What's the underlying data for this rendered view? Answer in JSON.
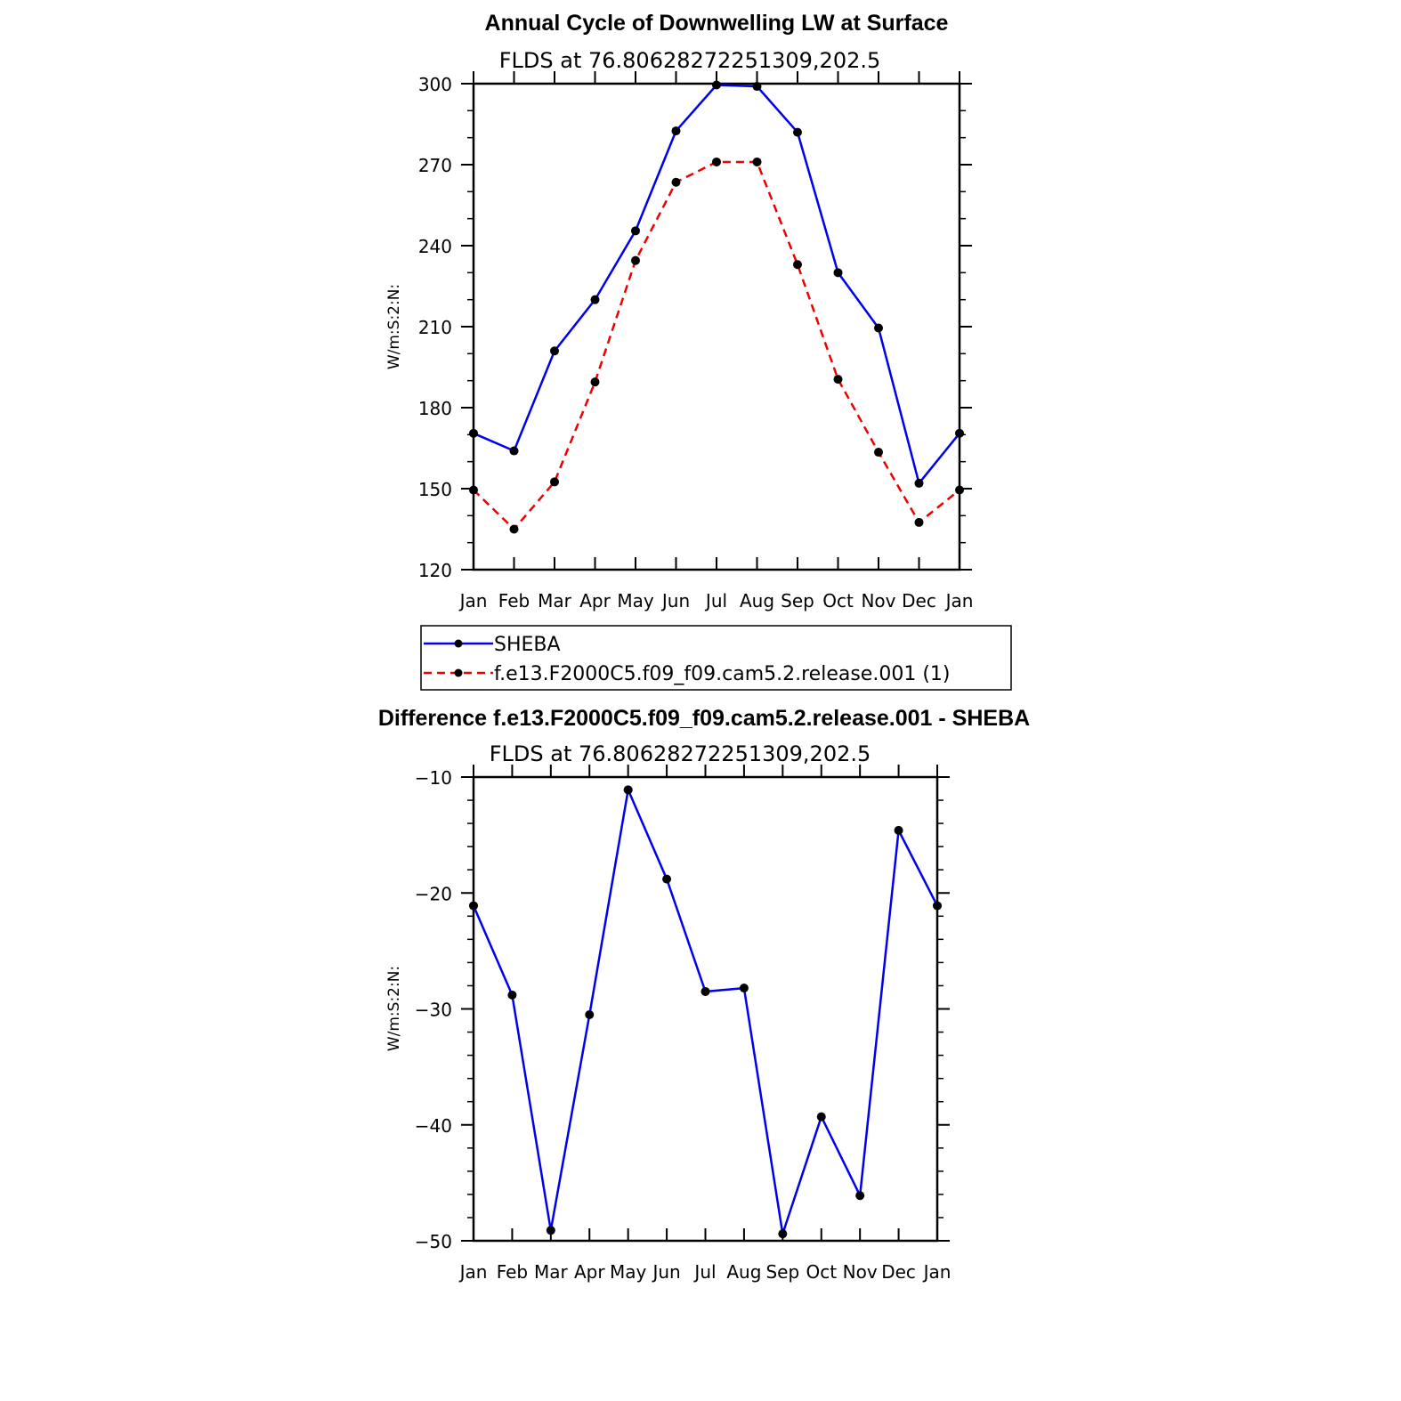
{
  "chart_data": [
    {
      "type": "line",
      "title": "Annual Cycle of Downwelling LW at Surface",
      "subtitle": "FLDS at 76.80628272251309,202.5",
      "ylabel": "W/m:S:2:N:",
      "xlabel": "",
      "categories": [
        "Jan",
        "Feb",
        "Mar",
        "Apr",
        "May",
        "Jun",
        "Jul",
        "Aug",
        "Sep",
        "Oct",
        "Nov",
        "Dec",
        "Jan"
      ],
      "ylim": [
        120,
        300
      ],
      "yticks": [
        "120",
        "150",
        "180",
        "210",
        "240",
        "270",
        "300"
      ],
      "grid": false,
      "legend_position": "bottom",
      "series": [
        {
          "name": "SHEBA",
          "color": "#0000ee",
          "dash": "solid",
          "values": [
            170.5,
            164,
            201,
            220,
            245.5,
            282.5,
            299.5,
            299,
            282,
            230,
            209.5,
            152,
            170.5
          ]
        },
        {
          "name": "f.e13.F2000C5.f09_f09.cam5.2.release.001 (1)",
          "color": "#ee0000",
          "dash": "dashed",
          "values": [
            149.5,
            135,
            152.5,
            189.5,
            234.5,
            263.5,
            271,
            271,
            233,
            190.5,
            163.5,
            137.5,
            149.5
          ]
        }
      ]
    },
    {
      "type": "line",
      "title": "Difference f.e13.F2000C5.f09_f09.cam5.2.release.001 - SHEBA",
      "subtitle": "FLDS at 76.80628272251309,202.5",
      "ylabel": "W/m:S:2:N:",
      "xlabel": "",
      "categories": [
        "Jan",
        "Feb",
        "Mar",
        "Apr",
        "May",
        "Jun",
        "Jul",
        "Aug",
        "Sep",
        "Oct",
        "Nov",
        "Dec",
        "Jan"
      ],
      "ylim": [
        -50,
        -10
      ],
      "yticks": [
        "−50",
        "−40",
        "−30",
        "−20",
        "−10"
      ],
      "grid": false,
      "series": [
        {
          "color": "#0000ee",
          "dash": "solid",
          "values": [
            -21.1,
            -28.8,
            -49.1,
            -30.5,
            -11.1,
            -18.8,
            -28.5,
            -28.2,
            -49.4,
            -39.3,
            -46.1,
            -14.6,
            -21.1
          ]
        }
      ]
    }
  ]
}
